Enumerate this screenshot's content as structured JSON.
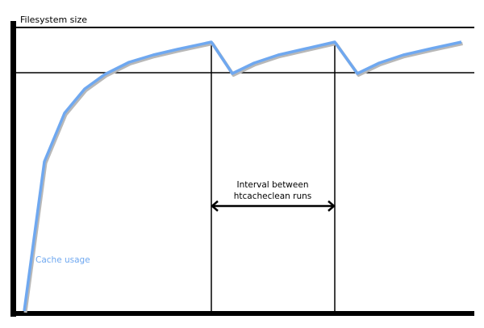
{
  "diagram": {
    "y_axis_label": "Filesystem size",
    "interval_label_line1": "Interval between",
    "interval_label_line2": "htcacheclean runs",
    "curve_label": "Cache usage",
    "colors": {
      "curve": "#6fa8f0",
      "axes": "#000000",
      "curve_shadow": "#b0b0b0"
    }
  }
}
